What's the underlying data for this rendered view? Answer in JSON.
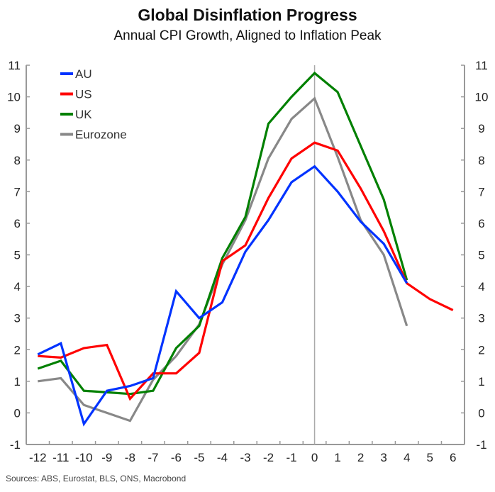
{
  "chart_data": {
    "type": "line",
    "title": "Global Disinflation Progress",
    "subtitle": "Annual CPI Growth, Aligned to Inflation Peak",
    "xlabel": "",
    "ylabel": "",
    "x": [
      -12,
      -11,
      -10,
      -9,
      -8,
      -7,
      -6,
      -5,
      -4,
      -3,
      -2,
      -1,
      0,
      1,
      2,
      3,
      4,
      5,
      6
    ],
    "x_tick_labels": [
      "-12",
      "-11",
      "-10",
      "-9",
      "-8",
      "-7",
      "-6",
      "-5",
      "-4",
      "-3",
      "-2",
      "-1",
      "0",
      "1",
      "2",
      "3",
      "4",
      "5",
      "6"
    ],
    "ylim": [
      -1,
      11
    ],
    "y_ticks": [
      -1,
      0,
      1,
      2,
      3,
      4,
      5,
      6,
      7,
      8,
      9,
      10,
      11
    ],
    "y_tick_labels": [
      "-1",
      "0",
      "1",
      "2",
      "3",
      "4",
      "5",
      "6",
      "7",
      "8",
      "9",
      "10",
      "11"
    ],
    "dual_y_axis": true,
    "grid": false,
    "vertical_reference_line_at_x": 0,
    "legend_position": "top-left",
    "series": [
      {
        "name": "AU",
        "color": "#0033ff",
        "values": [
          1.85,
          2.2,
          -0.35,
          0.7,
          0.85,
          1.1,
          3.85,
          3.0,
          3.5,
          5.1,
          6.1,
          7.3,
          7.8,
          7.0,
          6.05,
          5.35,
          4.1,
          null,
          null
        ]
      },
      {
        "name": "US",
        "color": "#ff0000",
        "values": [
          1.8,
          1.75,
          2.05,
          2.15,
          0.45,
          1.25,
          1.25,
          1.9,
          4.8,
          5.3,
          6.8,
          8.05,
          8.55,
          8.3,
          7.1,
          5.75,
          4.1,
          3.6,
          3.25
        ]
      },
      {
        "name": "UK",
        "color": "#008000",
        "values": [
          1.4,
          1.65,
          0.7,
          0.65,
          0.6,
          0.7,
          2.05,
          2.75,
          4.9,
          6.2,
          9.15,
          10.0,
          10.75,
          10.15,
          8.45,
          6.75,
          4.2,
          null,
          null
        ]
      },
      {
        "name": "Eurozone",
        "color": "#888888",
        "values": [
          1.0,
          1.1,
          0.25,
          0.0,
          -0.25,
          1.05,
          1.8,
          2.8,
          4.7,
          6.1,
          8.05,
          9.3,
          9.95,
          8.1,
          6.1,
          5.0,
          2.75,
          null,
          null
        ]
      }
    ]
  },
  "footer": {
    "source": "Sources: ABS, Eurostat, BLS, ONS, Macrobond"
  }
}
